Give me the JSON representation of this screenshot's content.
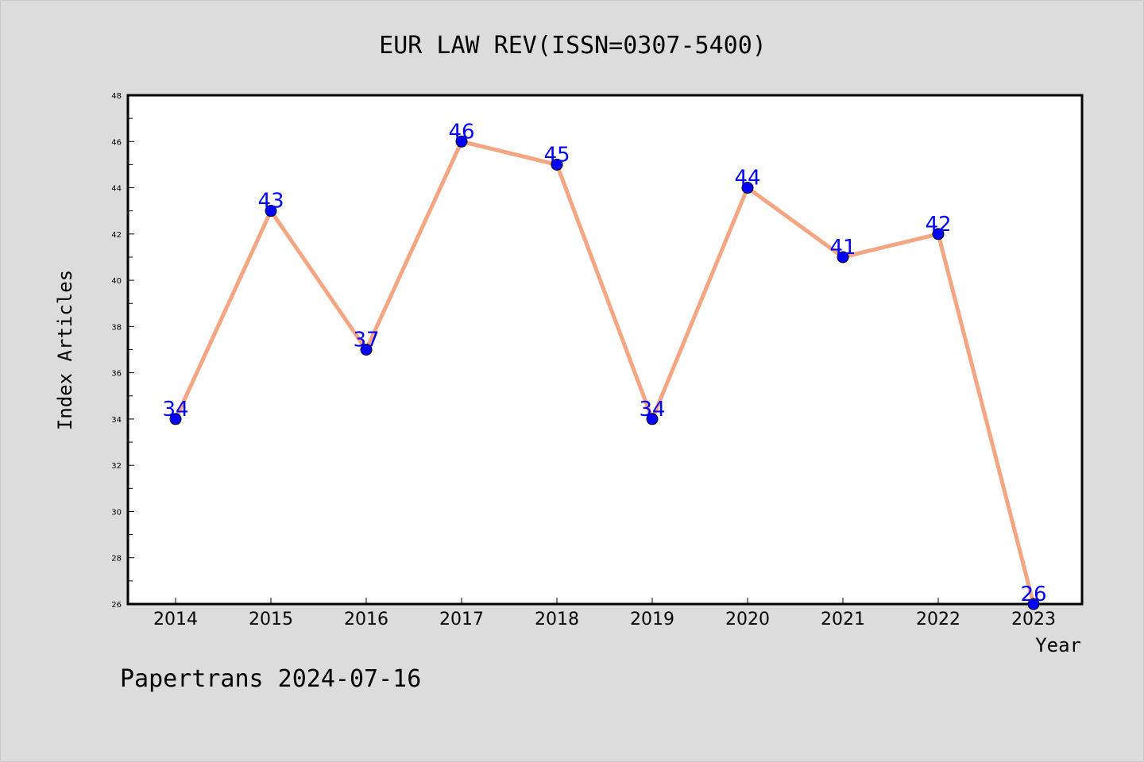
{
  "chart_data": {
    "type": "line",
    "title": "EUR LAW REV(ISSN=0307-5400)",
    "xlabel": "Year",
    "ylabel": "Index Articles",
    "categories": [
      "2014",
      "2015",
      "2016",
      "2017",
      "2018",
      "2019",
      "2020",
      "2021",
      "2022",
      "2023"
    ],
    "series": [
      {
        "values": [
          34,
          43,
          37,
          46,
          45,
          34,
          44,
          41,
          42,
          26
        ],
        "line_color": "#f4a582",
        "marker_color": "#0000ff"
      }
    ],
    "ylim": [
      26,
      48
    ],
    "yticks": [
      26,
      28,
      30,
      32,
      34,
      36,
      38,
      40,
      42,
      44,
      46,
      48
    ],
    "data_labels": true,
    "grid": false,
    "legend": "none"
  },
  "footer": {
    "text": "Papertrans 2024-07-16"
  },
  "colors": {
    "background": "#dcdcdc",
    "plot_background": "#ffffff",
    "line": "#f4a582",
    "marker": "#0000ff",
    "label": "#0000ff"
  }
}
